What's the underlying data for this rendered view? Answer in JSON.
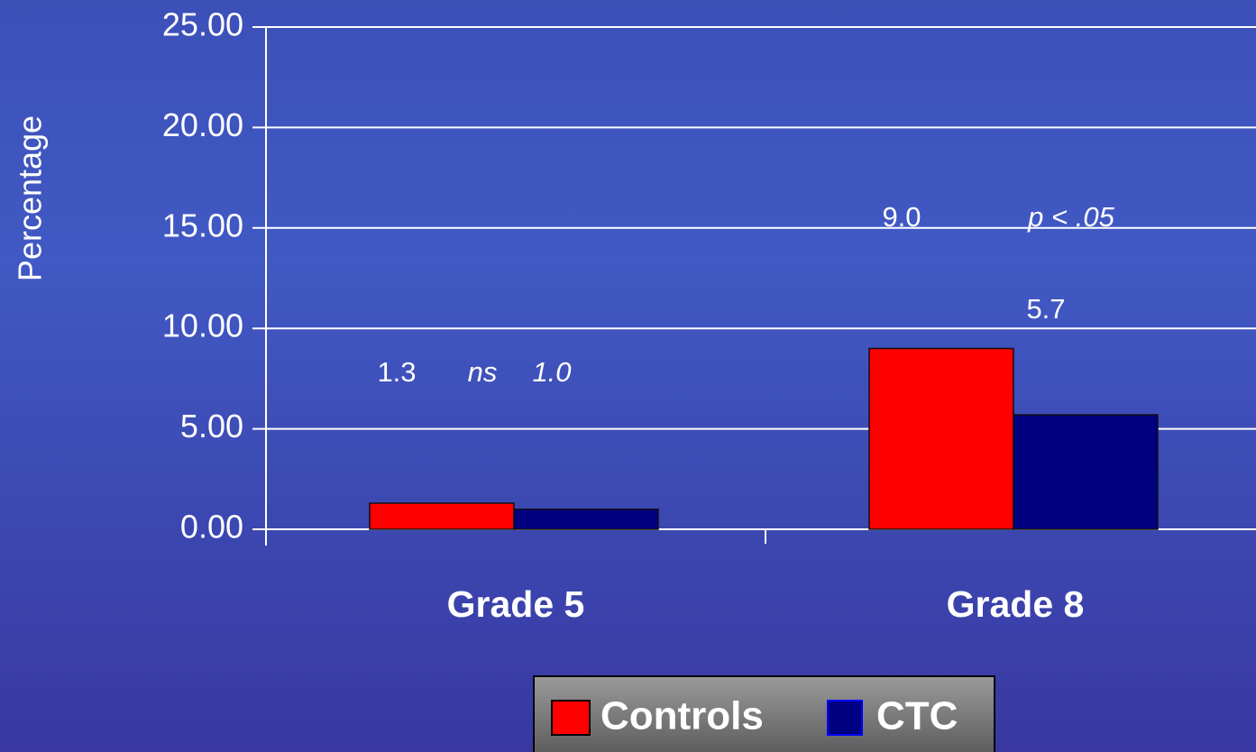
{
  "chart_data": {
    "type": "bar",
    "y_label": "Percentage",
    "categories": [
      "Grade 5",
      "Grade 8"
    ],
    "series": [
      {
        "name": "Controls",
        "color": "#ff0000",
        "values": [
          1.3,
          9.0
        ],
        "value_labels": [
          "1.3",
          "9.0"
        ]
      },
      {
        "name": "CTC",
        "color": "#000080",
        "values": [
          1.0,
          5.7
        ],
        "value_labels": [
          "1.0",
          "5.7"
        ]
      }
    ],
    "annotations": [
      "ns",
      "p < .05"
    ],
    "ylim": [
      0,
      25
    ],
    "yticks": [
      {
        "value": 0,
        "label": "0.00"
      },
      {
        "value": 5,
        "label": "5.00"
      },
      {
        "value": 10,
        "label": "10.00"
      },
      {
        "value": 15,
        "label": "15.00"
      },
      {
        "value": 20,
        "label": "20.00"
      },
      {
        "value": 25,
        "label": "25.00"
      }
    ],
    "grid": true,
    "legend": "bottom"
  }
}
